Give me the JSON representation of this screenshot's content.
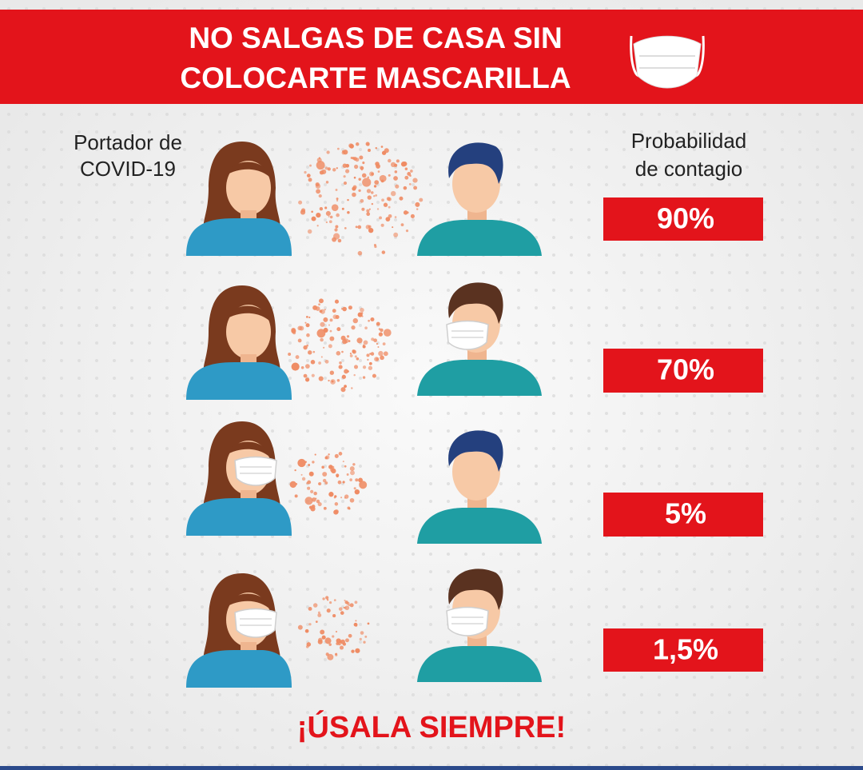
{
  "header": {
    "title": [
      "NO SALGAS DE CASA SIN",
      "COLOCARTE MASCARILLA"
    ]
  },
  "columns": {
    "carrier": [
      "Portador de",
      "COVID-19"
    ],
    "probability": [
      "Probabilidad",
      "de contagio"
    ]
  },
  "rows": [
    {
      "probability": "90%"
    },
    {
      "probability": "70%"
    },
    {
      "probability": "5%"
    },
    {
      "probability": "1,5%"
    }
  ],
  "footer": "¡ÚSALA SIEMPRE!"
}
